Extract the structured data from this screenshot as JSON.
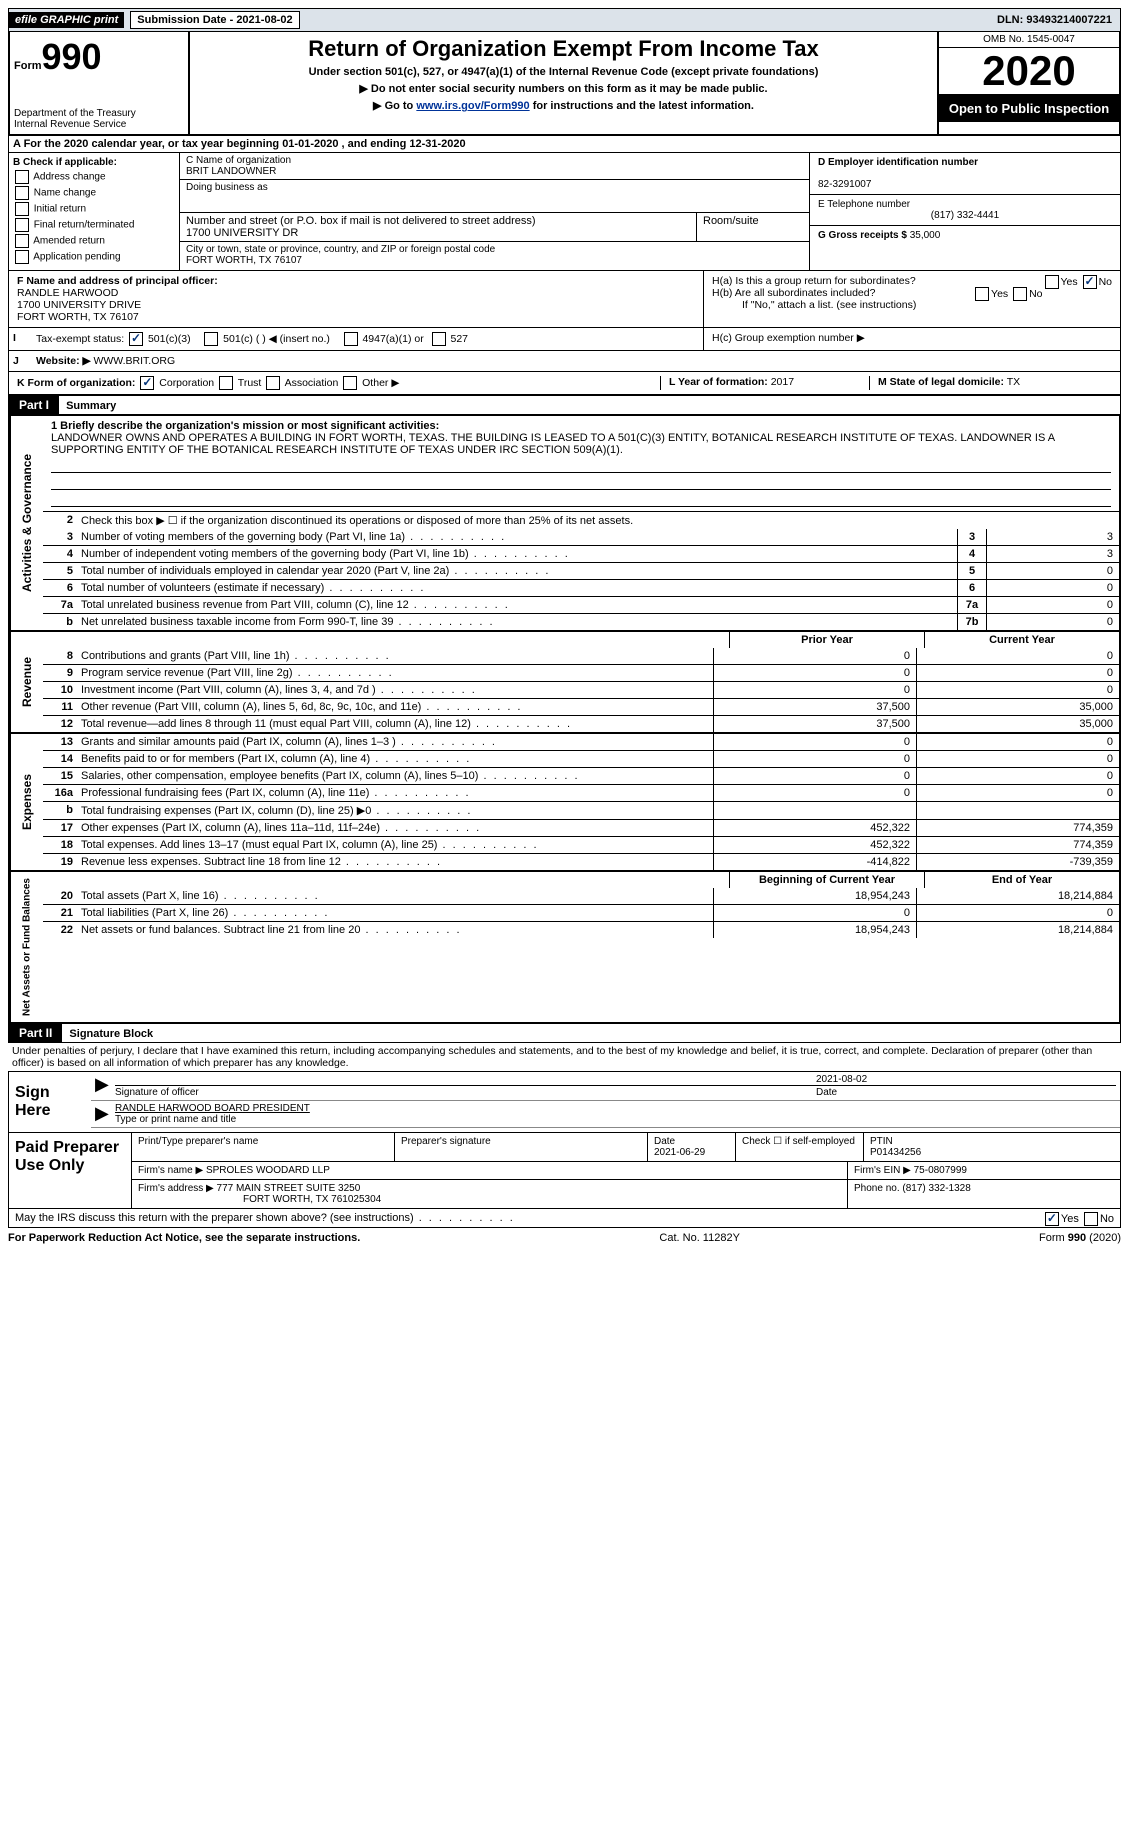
{
  "topbar": {
    "efile": "efile GRAPHIC print",
    "submission": "Submission Date - 2021-08-02",
    "dln": "DLN: 93493214007221"
  },
  "header": {
    "form": "Form",
    "number": "990",
    "dept": "Department of the Treasury\nInternal Revenue Service",
    "title": "Return of Organization Exempt From Income Tax",
    "subtitle": "Under section 501(c), 527, or 4947(a)(1) of the Internal Revenue Code (except private foundations)",
    "note1": "Do not enter social security numbers on this form as it may be made public.",
    "note2_pre": "Go to ",
    "note2_link": "www.irs.gov/Form990",
    "note2_post": " for instructions and the latest information.",
    "omb": "OMB No. 1545-0047",
    "year": "2020",
    "inspection": "Open to Public Inspection"
  },
  "lineA": "A For the 2020 calendar year, or tax year beginning 01-01-2020    , and ending 12-31-2020",
  "boxB": {
    "title": "B Check if applicable:",
    "items": [
      "Address change",
      "Name change",
      "Initial return",
      "Final return/terminated",
      "Amended return",
      "Application pending"
    ]
  },
  "boxC": {
    "label_name": "C Name of organization",
    "name": "BRIT LANDOWNER",
    "dba_label": "Doing business as",
    "addr_label": "Number and street (or P.O. box if mail is not delivered to street address)",
    "room_label": "Room/suite",
    "addr": "1700 UNIVERSITY DR",
    "city_label": "City or town, state or province, country, and ZIP or foreign postal code",
    "city": "FORT WORTH, TX  76107"
  },
  "boxD": {
    "ein_label": "D Employer identification number",
    "ein": "82-3291007",
    "phone_label": "E Telephone number",
    "phone": "(817) 332-4441",
    "gross_label": "G Gross receipts $",
    "gross": "35,000"
  },
  "boxF": {
    "label": "F Name and address of principal officer:",
    "name": "RANDLE HARWOOD",
    "addr": "1700 UNIVERSITY DRIVE",
    "city": "FORT WORTH, TX  76107"
  },
  "boxH": {
    "ha": "H(a)  Is this a group return for subordinates?",
    "hb": "H(b)  Are all subordinates included?",
    "hnote": "If \"No,\" attach a list. (see instructions)",
    "hc": "H(c)  Group exemption number ▶"
  },
  "taxStatus": {
    "label": "Tax-exempt status:",
    "opts": [
      "501(c)(3)",
      "501(c) (  ) ◀ (insert no.)",
      "4947(a)(1) or",
      "527"
    ]
  },
  "website": {
    "label": "Website: ▶",
    "value": "WWW.BRIT.ORG"
  },
  "lineK": {
    "label": "K Form of organization:",
    "opts": [
      "Corporation",
      "Trust",
      "Association",
      "Other ▶"
    ],
    "yearLabel": "L Year of formation:",
    "year": "2017",
    "stateLabel": "M State of legal domicile:",
    "state": "TX"
  },
  "part1": {
    "header": "Part I",
    "title": "Summary",
    "mission_label": "1  Briefly describe the organization's mission or most significant activities:",
    "mission": "LANDOWNER OWNS AND OPERATES A BUILDING IN FORT WORTH, TEXAS. THE BUILDING IS LEASED TO A 501(C)(3) ENTITY, BOTANICAL RESEARCH INSTITUTE OF TEXAS. LANDOWNER IS A SUPPORTING ENTITY OF THE BOTANICAL RESEARCH INSTITUTE OF TEXAS UNDER IRC SECTION 509(A)(1).",
    "line2": "Check this box ▶ ☐  if the organization discontinued its operations or disposed of more than 25% of its net assets.",
    "rows_gov": [
      {
        "n": "3",
        "t": "Number of voting members of the governing body (Part VI, line 1a)",
        "b": "3",
        "v": "3"
      },
      {
        "n": "4",
        "t": "Number of independent voting members of the governing body (Part VI, line 1b)",
        "b": "4",
        "v": "3"
      },
      {
        "n": "5",
        "t": "Total number of individuals employed in calendar year 2020 (Part V, line 2a)",
        "b": "5",
        "v": "0"
      },
      {
        "n": "6",
        "t": "Total number of volunteers (estimate if necessary)",
        "b": "6",
        "v": "0"
      },
      {
        "n": "7a",
        "t": "Total unrelated business revenue from Part VIII, column (C), line 12",
        "b": "7a",
        "v": "0"
      },
      {
        "n": "b",
        "t": "Net unrelated business taxable income from Form 990-T, line 39",
        "b": "7b",
        "v": "0"
      }
    ],
    "prior_label": "Prior Year",
    "current_label": "Current Year",
    "rows_rev": [
      {
        "n": "8",
        "t": "Contributions and grants (Part VIII, line 1h)",
        "p": "0",
        "c": "0"
      },
      {
        "n": "9",
        "t": "Program service revenue (Part VIII, line 2g)",
        "p": "0",
        "c": "0"
      },
      {
        "n": "10",
        "t": "Investment income (Part VIII, column (A), lines 3, 4, and 7d )",
        "p": "0",
        "c": "0"
      },
      {
        "n": "11",
        "t": "Other revenue (Part VIII, column (A), lines 5, 6d, 8c, 9c, 10c, and 11e)",
        "p": "37,500",
        "c": "35,000"
      },
      {
        "n": "12",
        "t": "Total revenue—add lines 8 through 11 (must equal Part VIII, column (A), line 12)",
        "p": "37,500",
        "c": "35,000"
      }
    ],
    "rows_exp": [
      {
        "n": "13",
        "t": "Grants and similar amounts paid (Part IX, column (A), lines 1–3 )",
        "p": "0",
        "c": "0"
      },
      {
        "n": "14",
        "t": "Benefits paid to or for members (Part IX, column (A), line 4)",
        "p": "0",
        "c": "0"
      },
      {
        "n": "15",
        "t": "Salaries, other compensation, employee benefits (Part IX, column (A), lines 5–10)",
        "p": "0",
        "c": "0"
      },
      {
        "n": "16a",
        "t": "Professional fundraising fees (Part IX, column (A), line 11e)",
        "p": "0",
        "c": "0"
      },
      {
        "n": "b",
        "t": "Total fundraising expenses (Part IX, column (D), line 25) ▶0",
        "p": "shade",
        "c": "shade"
      },
      {
        "n": "17",
        "t": "Other expenses (Part IX, column (A), lines 11a–11d, 11f–24e)",
        "p": "452,322",
        "c": "774,359"
      },
      {
        "n": "18",
        "t": "Total expenses. Add lines 13–17 (must equal Part IX, column (A), line 25)",
        "p": "452,322",
        "c": "774,359"
      },
      {
        "n": "19",
        "t": "Revenue less expenses. Subtract line 18 from line 12",
        "p": "-414,822",
        "c": "-739,359"
      }
    ],
    "beg_label": "Beginning of Current Year",
    "end_label": "End of Year",
    "rows_net": [
      {
        "n": "20",
        "t": "Total assets (Part X, line 16)",
        "p": "18,954,243",
        "c": "18,214,884"
      },
      {
        "n": "21",
        "t": "Total liabilities (Part X, line 26)",
        "p": "0",
        "c": "0"
      },
      {
        "n": "22",
        "t": "Net assets or fund balances. Subtract line 21 from line 20",
        "p": "18,954,243",
        "c": "18,214,884"
      }
    ]
  },
  "sideTabs": {
    "gov": "Activities & Governance",
    "rev": "Revenue",
    "exp": "Expenses",
    "net": "Net Assets or Fund Balances"
  },
  "part2": {
    "header": "Part II",
    "title": "Signature Block",
    "decl": "Under penalties of perjury, I declare that I have examined this return, including accompanying schedules and statements, and to the best of my knowledge and belief, it is true, correct, and complete. Declaration of preparer (other than officer) is based on all information of which preparer has any knowledge.",
    "sign_here": "Sign Here",
    "sig_label": "Signature of officer",
    "date_label": "Date",
    "date": "2021-08-02",
    "name": "RANDLE HARWOOD  BOARD PRESIDENT",
    "name_label": "Type or print name and title",
    "paid": "Paid Preparer Use Only",
    "prep_name_label": "Print/Type preparer's name",
    "prep_sig_label": "Preparer's signature",
    "prep_date_label": "Date",
    "prep_date": "2021-06-29",
    "check_label": "Check ☐ if self-employed",
    "ptin_label": "PTIN",
    "ptin": "P01434256",
    "firm_name_label": "Firm's name    ▶",
    "firm_name": "SPROLES WOODARD LLP",
    "firm_ein_label": "Firm's EIN ▶",
    "firm_ein": "75-0807999",
    "firm_addr_label": "Firm's address ▶",
    "firm_addr": "777 MAIN STREET SUITE 3250",
    "firm_city": "FORT WORTH, TX  761025304",
    "firm_phone_label": "Phone no.",
    "firm_phone": "(817) 332-1328",
    "may_irs": "May the IRS discuss this return with the preparer shown above? (see instructions)"
  },
  "footer": {
    "left": "For Paperwork Reduction Act Notice, see the separate instructions.",
    "mid": "Cat. No. 11282Y",
    "right": "Form 990 (2020)"
  }
}
